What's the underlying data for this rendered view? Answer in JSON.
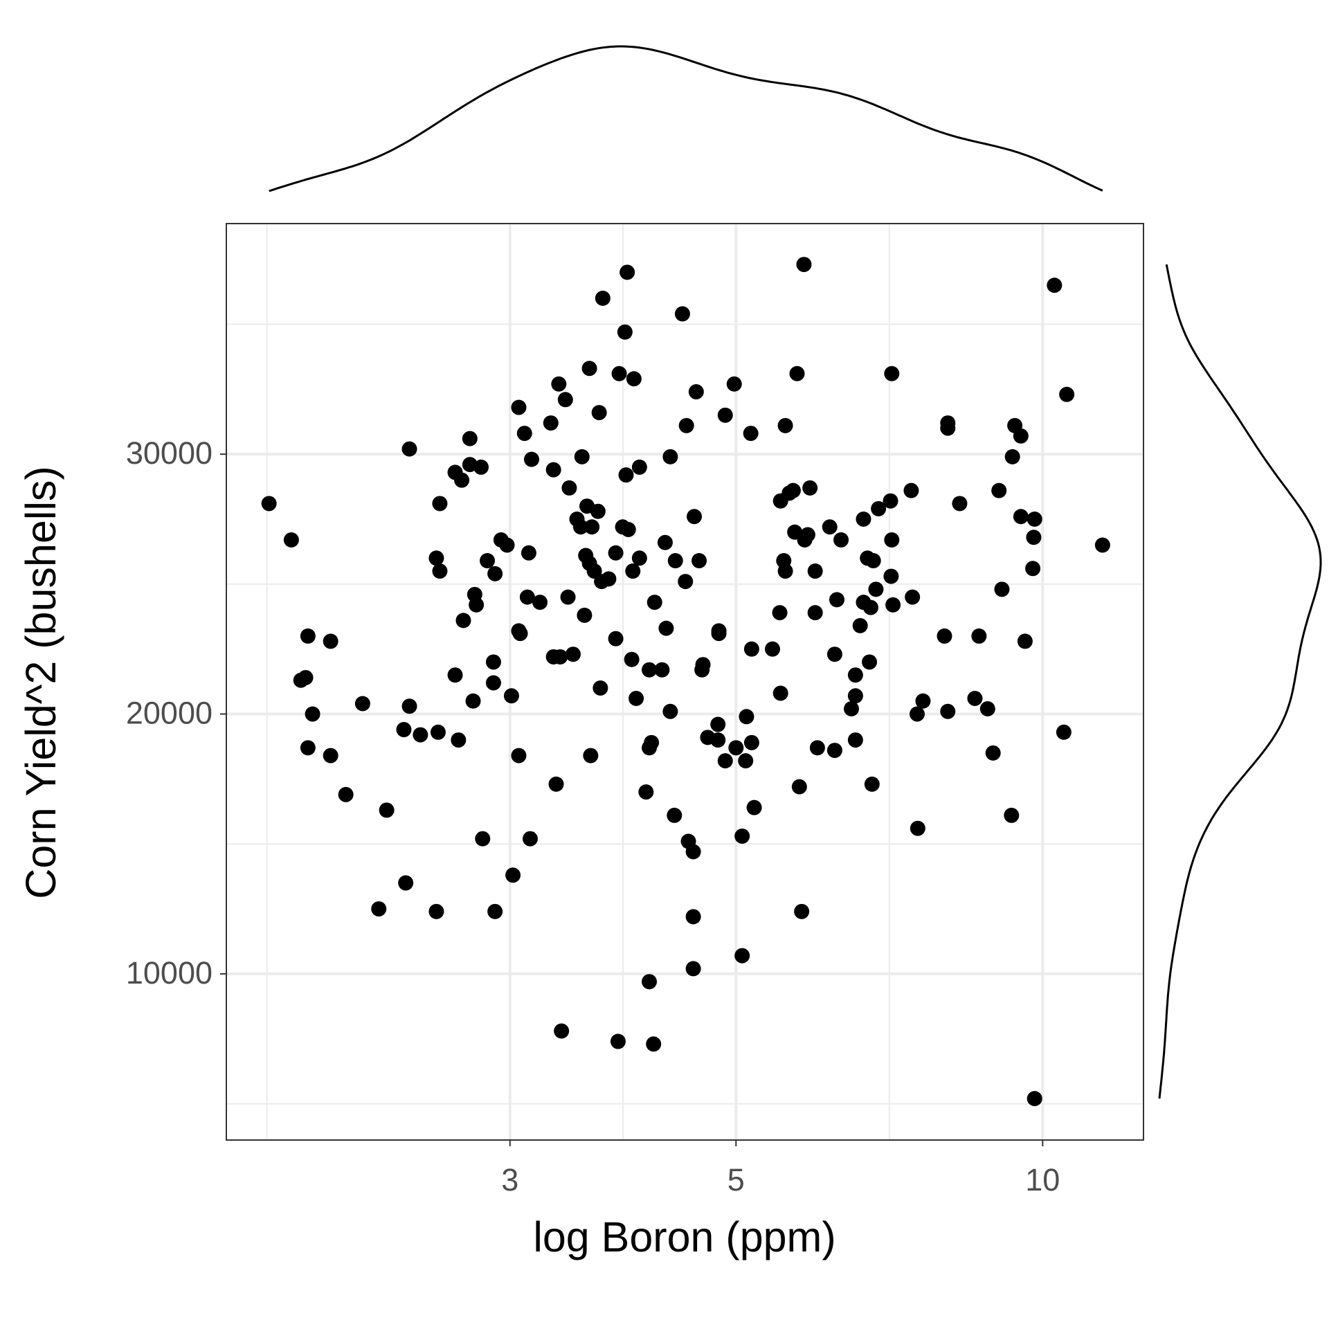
{
  "chart_data": {
    "type": "scatter",
    "x_label": "log Boron (ppm)",
    "y_label": "Corn Yield^2 (bushells)",
    "x_scale": "log",
    "marginal": "density",
    "grid": true,
    "color": "#000000",
    "xlim": [
      1.58,
      12.56
    ],
    "ylim": [
      3605,
      38874
    ],
    "xticks": [
      3,
      5,
      10
    ],
    "yticks": [
      10000,
      20000,
      30000
    ],
    "x_minor_grid": [
      1.732,
      3.873,
      7.071
    ],
    "y_minor_grid": [
      5000,
      15000,
      25000,
      35000
    ],
    "x": [
      1.74,
      1.83,
      1.9,
      2.0,
      1.87,
      1.89,
      1.92,
      1.9,
      2.0,
      2.07,
      2.15,
      2.27,
      2.23,
      2.37,
      2.54,
      2.36,
      2.45,
      2.55,
      2.39,
      2.39,
      2.67,
      2.65,
      2.76,
      2.82,
      2.9,
      3.02,
      3.06,
      3.14,
      3.33,
      3.01,
      2.89,
      2.89,
      2.7,
      2.77,
      2.78,
      2.9,
      2.85,
      2.56,
      2.54,
      2.56,
      2.65,
      2.69,
      2.74,
      2.81,
      2.74,
      2.94,
      2.98,
      3.06,
      3.1,
      3.15,
      3.13,
      3.12,
      3.21,
      3.06,
      3.07,
      3.31,
      3.36,
      3.46,
      3.42,
      3.68,
      3.6,
      3.37,
      3.83,
      4.15,
      4.11,
      4.08,
      4.11,
      4.13,
      4.35,
      4.31,
      4.49,
      4.54,
      4.54,
      4.54,
      4.69,
      4.8,
      4.8,
      4.88,
      5.0,
      5.12,
      5.11,
      5.18,
      5.21,
      5.07,
      5.07,
      4.81,
      4.81,
      4.63,
      4.64,
      4.23,
      4.11,
      3.95,
      3.99,
      3.81,
      4.16,
      4.27,
      4.26,
      4.36,
      4.46,
      4.6,
      4.55,
      4.31,
      4.47,
      4.57,
      4.43,
      4.88,
      4.98,
      5.17,
      5.18,
      5.43,
      5.53,
      5.59,
      3.7,
      3.91,
      3.89,
      3.84,
      3.97,
      3.35,
      3.4,
      3.29,
      3.59,
      3.67,
      3.53,
      3.43,
      3.31,
      3.9,
      4.02,
      3.49,
      3.52,
      3.57,
      3.61,
      3.66,
      3.87,
      3.92,
      3.56,
      3.59,
      3.63,
      3.69,
      3.75,
      3.81,
      3.96,
      4.02,
      3.55,
      5.83,
      5.74,
      5.91,
      5.69,
      5.64,
      5.53,
      5.71,
      5.88,
      5.84,
      5.57,
      5.59,
      5.98,
      5.52,
      5.98,
      6.18,
      6.34,
      6.28,
      6.25,
      6.67,
      6.9,
      7.09,
      6.73,
      6.82,
      7.1,
      6.86,
      6.67,
      6.78,
      7.13,
      6.62,
      7.11,
      7.43,
      7.45,
      6.76,
      6.55,
      6.55,
      6.49,
      6.55,
      6.25,
      6.01,
      5.77,
      6.8,
      5.8,
      7.11,
      8.07,
      8.07,
      8.29,
      8.01,
      7.53,
      7.63,
      8.07,
      7.54,
      8.58,
      8.66,
      8.83,
      8.94,
      9.06,
      9.12,
      9.34,
      9.39,
      9.52,
      9.52,
      9.82,
      9.8,
      9.78,
      9.61,
      9.32,
      9.82,
      10.27,
      10.56,
      10.49,
      11.45
    ],
    "values": [
      28100,
      26700,
      23000,
      22800,
      21300,
      21400,
      20000,
      18700,
      18400,
      16900,
      20400,
      16300,
      12500,
      13500,
      12400,
      19400,
      19200,
      19300,
      30200,
      20300,
      19000,
      21500,
      20500,
      15200,
      12400,
      13800,
      18400,
      15200,
      17300,
      20700,
      22000,
      21200,
      23600,
      24600,
      24200,
      25400,
      25900,
      25500,
      26000,
      28100,
      29300,
      29000,
      29600,
      29500,
      30600,
      26700,
      26500,
      31800,
      30800,
      29800,
      26200,
      24500,
      24300,
      23200,
      23100,
      22200,
      22200,
      22300,
      24500,
      21000,
      18400,
      7800,
      7400,
      7300,
      9700,
      17000,
      18700,
      18900,
      16100,
      20100,
      15100,
      14700,
      12200,
      10200,
      19100,
      19000,
      19600,
      18200,
      18700,
      19900,
      18200,
      18900,
      16400,
      15300,
      10700,
      23100,
      23200,
      21700,
      21900,
      21700,
      21700,
      22100,
      20600,
      22900,
      24300,
      23300,
      26600,
      25900,
      25100,
      25900,
      27600,
      29900,
      31100,
      32400,
      35400,
      31500,
      32700,
      30800,
      22500,
      22500,
      20800,
      31100,
      36000,
      37000,
      34700,
      33100,
      32900,
      32700,
      32100,
      31200,
      33300,
      31600,
      29900,
      28700,
      29400,
      29200,
      29500,
      27500,
      27200,
      28000,
      27200,
      27800,
      27200,
      27100,
      26100,
      25800,
      25500,
      25100,
      25200,
      26200,
      25500,
      26000,
      23800,
      37300,
      33100,
      28700,
      28600,
      28500,
      28200,
      27000,
      26900,
      26700,
      25900,
      25500,
      25500,
      23900,
      23900,
      27200,
      26700,
      24400,
      22300,
      27500,
      27900,
      28200,
      26000,
      25900,
      25300,
      24800,
      24300,
      24100,
      24200,
      23400,
      26700,
      28600,
      24500,
      22000,
      21500,
      20700,
      20200,
      19000,
      18600,
      18700,
      17200,
      17300,
      12400,
      33100,
      31200,
      31000,
      28100,
      23000,
      20000,
      20500,
      20100,
      15600,
      20600,
      23000,
      20200,
      18500,
      28600,
      24800,
      29900,
      31100,
      30700,
      27600,
      27500,
      26800,
      25600,
      22800,
      16100,
      5200,
      36500,
      32300,
      19300,
      26500
    ]
  }
}
